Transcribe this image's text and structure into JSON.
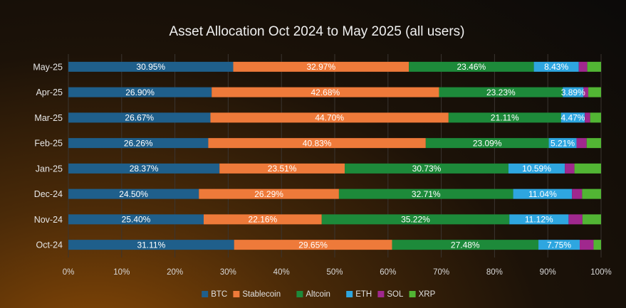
{
  "chart_data": {
    "type": "bar",
    "orientation": "horizontal",
    "stacked": true,
    "title": "Asset Allocation Oct 2024 to May 2025 (all users)",
    "xlabel": "",
    "ylabel": "",
    "xlim": [
      0,
      100
    ],
    "x_ticks": [
      "0%",
      "10%",
      "20%",
      "30%",
      "40%",
      "50%",
      "60%",
      "70%",
      "80%",
      "90%",
      "100%"
    ],
    "grid": "vertical",
    "legend_position": "bottom",
    "categories": [
      "May-25",
      "Apr-25",
      "Mar-25",
      "Feb-25",
      "Jan-25",
      "Dec-24",
      "Nov-24",
      "Oct-24"
    ],
    "series": [
      {
        "name": "BTC",
        "color": "#1f5f8b",
        "values": [
          30.95,
          26.9,
          26.67,
          26.26,
          28.37,
          24.5,
          25.4,
          31.11
        ],
        "labels": [
          "30.95%",
          "26.90%",
          "26.67%",
          "26.26%",
          "28.37%",
          "24.50%",
          "25.40%",
          "31.11%"
        ]
      },
      {
        "name": "Stablecoin",
        "color": "#ee7a3a",
        "values": [
          32.97,
          42.68,
          44.7,
          40.83,
          23.51,
          26.29,
          22.16,
          29.65
        ],
        "labels": [
          "32.97%",
          "42.68%",
          "44.70%",
          "40.83%",
          "23.51%",
          "26.29%",
          "22.16%",
          "29.65%"
        ]
      },
      {
        "name": "Altcoin",
        "color": "#1d8a3a",
        "values": [
          23.46,
          23.23,
          21.11,
          23.09,
          30.73,
          32.71,
          35.22,
          27.48
        ],
        "labels": [
          "23.46%",
          "23.23%",
          "21.11%",
          "23.09%",
          "30.73%",
          "32.71%",
          "35.22%",
          "27.48%"
        ]
      },
      {
        "name": "ETH",
        "color": "#2ea6e0",
        "values": [
          8.43,
          3.89,
          4.47,
          5.21,
          10.59,
          11.04,
          11.12,
          7.75
        ],
        "labels": [
          "8.43%",
          "3.89%",
          "4.47%",
          "5.21%",
          "10.59%",
          "11.04%",
          "11.12%",
          "7.75%"
        ]
      },
      {
        "name": "SOL",
        "color": "#a0288e",
        "values": [
          1.6,
          0.9,
          1.0,
          1.9,
          1.8,
          1.9,
          2.6,
          2.6
        ],
        "labels": [
          "",
          "",
          "",
          "",
          "",
          "",
          "",
          ""
        ]
      },
      {
        "name": "XRP",
        "color": "#52b534",
        "values": [
          2.59,
          2.4,
          2.05,
          2.71,
          5.0,
          3.56,
          3.5,
          1.41
        ],
        "labels": [
          "",
          "",
          "",
          "",
          "",
          "",
          "",
          ""
        ]
      }
    ]
  }
}
